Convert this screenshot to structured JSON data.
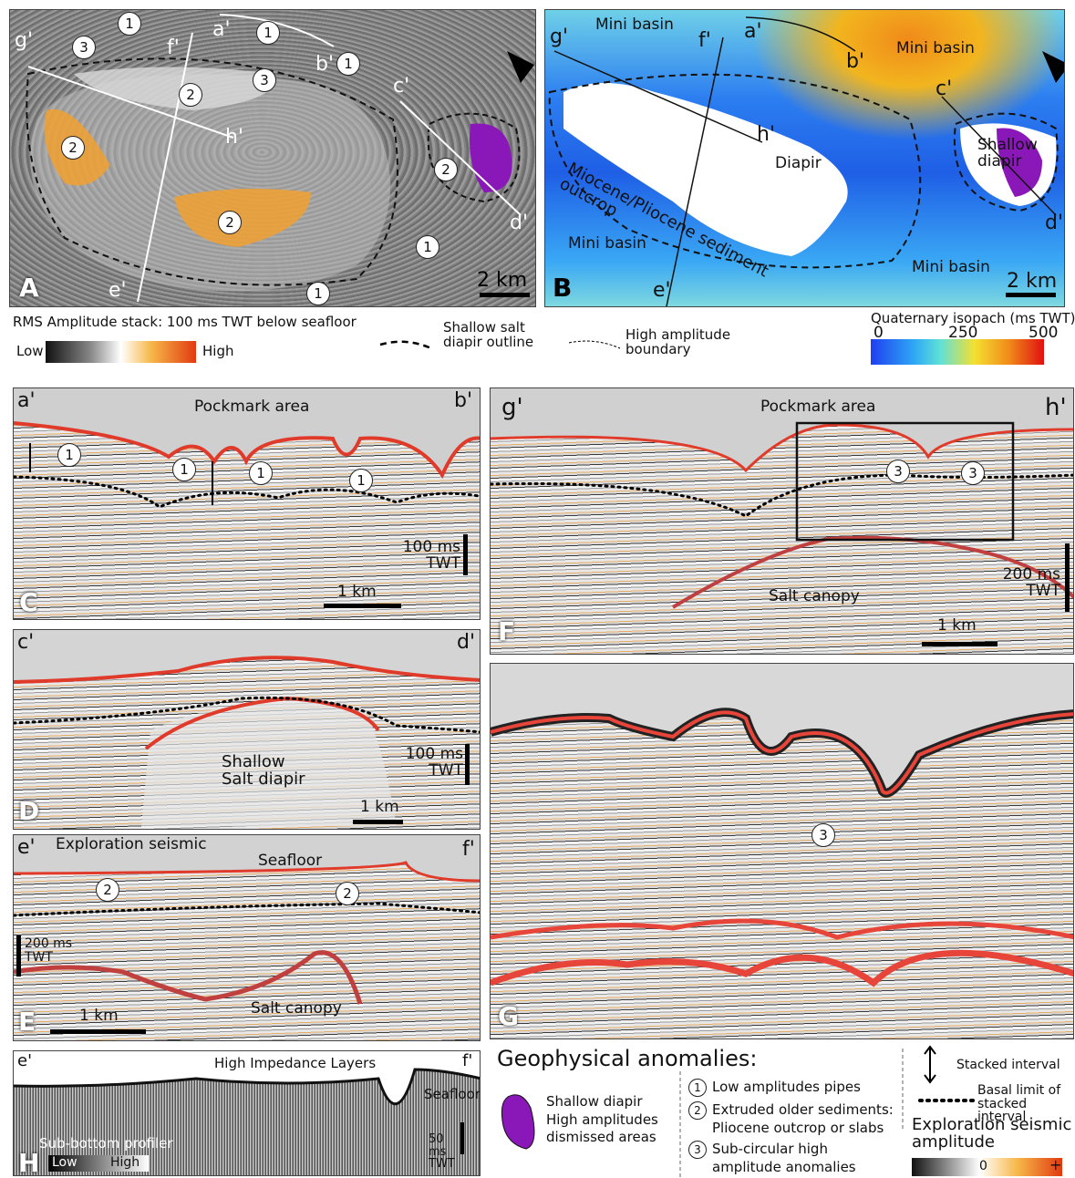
{
  "panel_a": {
    "label": "A",
    "sections": [
      "g'",
      "f'",
      "a'",
      "b'",
      "c'",
      "d'",
      "e'",
      "h'"
    ],
    "markers": [
      "1",
      "1",
      "1",
      "1",
      "1",
      "3",
      "3",
      "2",
      "2",
      "2",
      "2"
    ],
    "scale": "2 km"
  },
  "panel_b": {
    "label": "B",
    "areas": [
      "Mini basin",
      "Mini basin",
      "Mini basin",
      "Mini basin"
    ],
    "sections": [
      "g'",
      "f'",
      "a'",
      "b'",
      "c'",
      "h'",
      "d'",
      "e'"
    ],
    "outcrop": "Miocene/Pliocene sediment outcrop",
    "diapir": "Diapir",
    "shallow_diapir": "Shallow diapir",
    "scale": "2 km"
  },
  "map_legend": {
    "rms_title": "RMS Amplitude stack: 100 ms TWT below seafloor",
    "rms_low": "Low",
    "rms_high": "High",
    "outline": "Shallow salt diapir outline",
    "boundary": "High amplitude boundary",
    "isopach_title": "Quaternary isopach (ms TWT)",
    "isopach_ticks": [
      "0",
      "250",
      "500"
    ]
  },
  "panel_c": {
    "label": "C",
    "left": "a'",
    "right": "b'",
    "title": "Pockmark area",
    "markers": [
      "1",
      "1",
      "1",
      "1"
    ],
    "vertical_scale": "100 ms TWT",
    "scale": "1 km"
  },
  "panel_d": {
    "label": "D",
    "left": "c'",
    "right": "d'",
    "body": "Shallow Salt diapir",
    "vertical_scale": "100 ms TWT",
    "scale": "1 km"
  },
  "panel_e": {
    "label": "E",
    "left": "e'",
    "right": "f'",
    "title": "Exploration seismic",
    "seafloor": "Seafloor",
    "markers": [
      "2",
      "2"
    ],
    "vertical_scale": "200 ms TWT",
    "scale": "1 km",
    "body": "Salt canopy"
  },
  "panel_f": {
    "label": "F",
    "left": "g'",
    "right": "h'",
    "title": "Pockmark area",
    "markers": [
      "3",
      "3"
    ],
    "vertical_scale": "200 ms TWT",
    "body": "Salt canopy",
    "scale": "1 km"
  },
  "panel_g": {
    "label": "G",
    "markers": [
      "3"
    ]
  },
  "panel_h": {
    "label": "H",
    "left": "e'",
    "right": "f'",
    "title": "High Impedance Layers",
    "seafloor": "Seafloor",
    "vertical_scale": "50 ms TWT",
    "instrument": "Sub-bottom profiler",
    "low": "Low",
    "high": "High"
  },
  "legend": {
    "title": "Geophysical anomalies:",
    "dismissed": "Shallow diapir High amplitudes dismissed areas",
    "items": [
      {
        "marker": "1",
        "text": "Low amplitudes pipes"
      },
      {
        "marker": "2",
        "text": "Extruded older sediments: Pliocene outcrop or slabs"
      },
      {
        "marker": "3",
        "text": "Sub-circular high amplitude anomalies"
      }
    ],
    "stacked": "Stacked interval",
    "basal": "Basal limit of stacked interval",
    "amplitude_title": "Exploration seismic amplitude",
    "amplitude_zero": "0",
    "amplitude_plus": "+"
  }
}
